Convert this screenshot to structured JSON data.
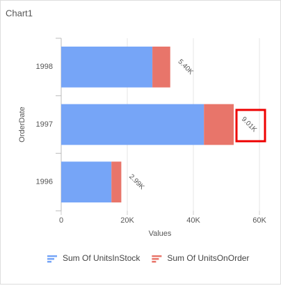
{
  "chart_data": {
    "type": "stacked-barh",
    "title": "Chart1",
    "x_label": "Values",
    "y_label": "OrderDate",
    "categories": [
      "1998",
      "1997",
      "1996"
    ],
    "series": [
      {
        "name": "Sum Of UnitsInStock",
        "color": "#76a5f7",
        "values": [
          27600,
          43200,
          15200
        ]
      },
      {
        "name": "Sum Of UnitsOnOrder",
        "color": "#e8756a",
        "values": [
          5400,
          9010,
          2990
        ],
        "value_labels": [
          "5.40K",
          "9.01K",
          "2.99K"
        ]
      }
    ],
    "xlim": [
      0,
      60000
    ],
    "xticks": [
      0,
      {
        "value": 20000,
        "label": "20K"
      },
      {
        "value": 40000,
        "label": "40K"
      },
      {
        "value": 60000,
        "label": "60K"
      }
    ],
    "grid": true
  }
}
